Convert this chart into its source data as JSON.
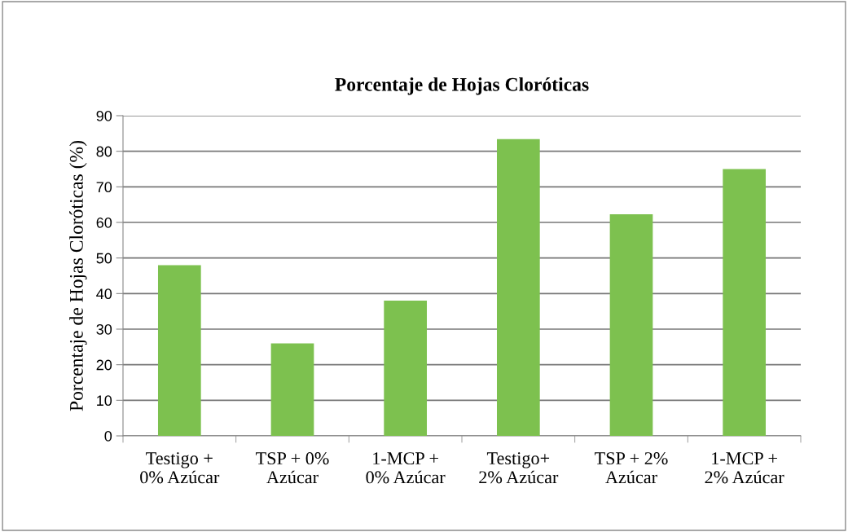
{
  "chart_data": {
    "type": "bar",
    "title": "Porcentaje de Hojas Cloróticas",
    "ylabel": "Porcentaje de Hojas Cloróticas (%)",
    "categories": [
      "Testigo +\n0% Azúcar",
      "TSP + 0%\nAzúcar",
      "1-MCP +\n0% Azúcar",
      "Testigo+\n2% Azúcar",
      "TSP + 2%\nAzúcar",
      "1-MCP +\n2% Azúcar"
    ],
    "values": [
      48,
      26,
      38,
      83.4,
      62.3,
      75
    ],
    "color": "#7dc14f",
    "ylim": [
      0,
      90
    ],
    "yticks": [
      0,
      10,
      20,
      30,
      40,
      50,
      60,
      70,
      80,
      90
    ],
    "grid": "y"
  }
}
